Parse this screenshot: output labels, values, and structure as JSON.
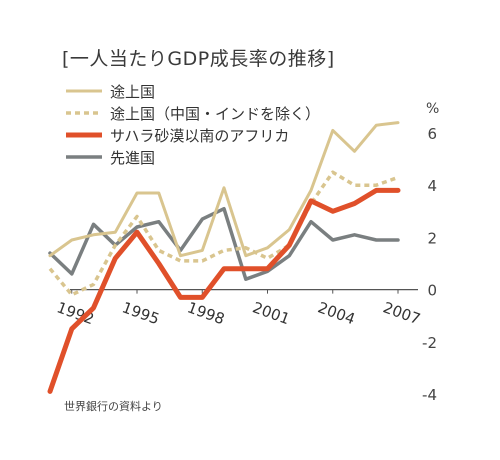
{
  "chart_data": {
    "type": "line",
    "title": "[一人当たりGDP成長率の推移]",
    "unit": "%",
    "source": "世界銀行の資料より",
    "x": [
      1991,
      1992,
      1993,
      1994,
      1995,
      1996,
      1997,
      1998,
      1999,
      2000,
      2001,
      2002,
      2003,
      2004,
      2005,
      2006,
      2007
    ],
    "x_tick_labels": [
      "1992",
      "1995",
      "1998",
      "2001",
      "2004",
      "2007"
    ],
    "x_tick_values": [
      1992,
      1995,
      1998,
      2001,
      2004,
      2007
    ],
    "ylim": [
      -4,
      6
    ],
    "y_ticks": [
      6,
      4,
      2,
      0,
      -2,
      -4
    ],
    "grid": false,
    "series": [
      {
        "name": "途上国",
        "color": "#d9c58f",
        "dash": "solid",
        "values": [
          1.3,
          1.9,
          2.1,
          2.2,
          3.7,
          3.7,
          1.3,
          1.5,
          3.9,
          1.3,
          1.6,
          2.3,
          3.8,
          6.1,
          5.3,
          6.3,
          6.4
        ]
      },
      {
        "name": "途上国（中国・インドを除く）",
        "color": "#d9c58f",
        "dash": "dotted",
        "values": [
          0.8,
          -0.2,
          0.2,
          1.7,
          2.8,
          1.5,
          1.1,
          1.1,
          1.5,
          1.6,
          1.2,
          1.7,
          3.3,
          4.5,
          4.0,
          4.0,
          4.3
        ]
      },
      {
        "name": "サハラ砂漠以南のアフリカ",
        "color": "#e0502a",
        "dash": "solid",
        "values": [
          -3.9,
          -1.5,
          -0.7,
          1.2,
          2.2,
          1.0,
          -0.3,
          -0.3,
          0.8,
          0.8,
          0.8,
          1.7,
          3.4,
          3.0,
          3.3,
          3.8,
          3.8
        ]
      },
      {
        "name": "先進国",
        "color": "#7a7f80",
        "dash": "solid",
        "values": [
          1.4,
          0.6,
          2.5,
          1.7,
          2.4,
          2.6,
          1.5,
          2.7,
          3.1,
          0.4,
          0.7,
          1.3,
          2.6,
          1.9,
          2.1,
          1.9,
          1.9
        ]
      }
    ]
  }
}
